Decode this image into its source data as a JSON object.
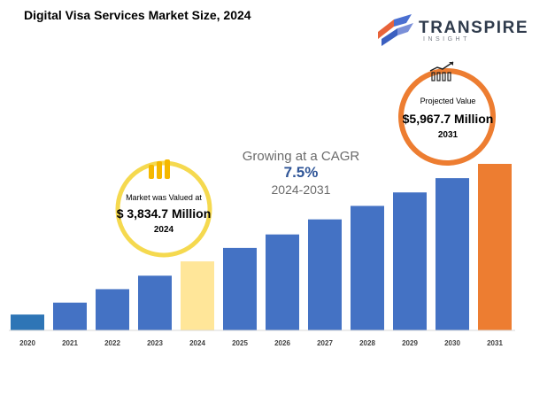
{
  "title": "Digital Visa Services Market Size, 2024",
  "logo": {
    "name": "TRANSPIRE",
    "subtitle": "INSIGHT",
    "icon": "transpire-logo-icon"
  },
  "cagr": {
    "line1": "Growing at a CAGR",
    "value": "7.5%",
    "period": "2024-2031"
  },
  "callouts": {
    "base": {
      "label": "Market was Valued at",
      "value": "$ 3,834.7 Million",
      "year": "2024",
      "ring_color": "#f5d94f",
      "icon": "coins-icon"
    },
    "projected": {
      "label": "Projected Value",
      "value": "$5,967.7 Million",
      "year": "2031",
      "ring_color": "#ed7d31",
      "icon": "growth-chart-icon"
    }
  },
  "chart_data": {
    "type": "bar",
    "categories": [
      "2020",
      "2021",
      "2022",
      "2023",
      "2024",
      "2025",
      "2026",
      "2027",
      "2028",
      "2029",
      "2030",
      "2031"
    ],
    "values": [
      1.0,
      1.75,
      2.6,
      3.45,
      4.35,
      5.2,
      6.05,
      7.0,
      7.85,
      8.7,
      9.6,
      10.5
    ],
    "colors": [
      "#2e75b6",
      "#4472c4",
      "#4472c4",
      "#4472c4",
      "#ffe699",
      "#4472c4",
      "#4472c4",
      "#4472c4",
      "#4472c4",
      "#4472c4",
      "#4472c4",
      "#ed7d31"
    ],
    "ylim": [
      0,
      10.5
    ],
    "grid": false,
    "legend": "none"
  }
}
